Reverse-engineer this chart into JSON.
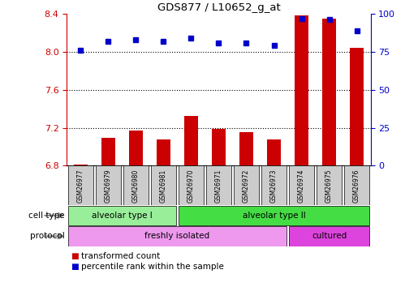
{
  "title": "GDS877 / L10652_g_at",
  "samples": [
    "GSM26977",
    "GSM26979",
    "GSM26980",
    "GSM26981",
    "GSM26970",
    "GSM26971",
    "GSM26972",
    "GSM26973",
    "GSM26974",
    "GSM26975",
    "GSM26976"
  ],
  "transformed_count": [
    6.81,
    7.09,
    7.17,
    7.08,
    7.32,
    7.19,
    7.15,
    7.08,
    8.38,
    8.35,
    8.04
  ],
  "percentile_rank": [
    76,
    82,
    83,
    82,
    84,
    81,
    81,
    79,
    97,
    96,
    89
  ],
  "ylim_left": [
    6.8,
    8.4
  ],
  "ylim_right": [
    0,
    100
  ],
  "yticks_left": [
    6.8,
    7.2,
    7.6,
    8.0,
    8.4
  ],
  "yticks_right": [
    0,
    25,
    50,
    75,
    100
  ],
  "bar_color": "#cc0000",
  "dot_color": "#0000cc",
  "cell_type_groups": [
    {
      "label": "alveolar type I",
      "start": 0,
      "end": 3,
      "color": "#99ee99"
    },
    {
      "label": "alveolar type II",
      "start": 4,
      "end": 10,
      "color": "#44dd44"
    }
  ],
  "protocol_groups": [
    {
      "label": "freshly isolated",
      "start": 0,
      "end": 7,
      "color": "#ee99ee"
    },
    {
      "label": "cultured",
      "start": 8,
      "end": 10,
      "color": "#dd44dd"
    }
  ],
  "left_label_color": "#cc0000",
  "right_label_color": "#0000cc",
  "bg_color": "#ffffff"
}
